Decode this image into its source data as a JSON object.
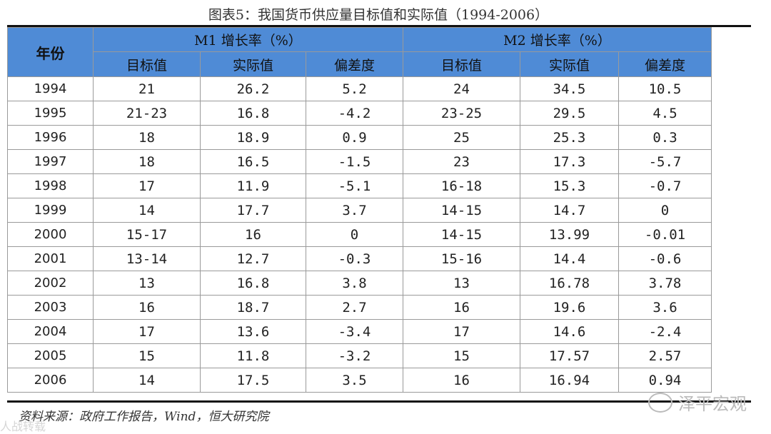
{
  "caption": "图表5：我国货币供应量目标值和实际值（1994-2006）",
  "headers": {
    "year": "年份",
    "m1_group": "M1 增长率（%）",
    "m2_group": "M2 增长率（%）",
    "target": "目标值",
    "actual": "实际值",
    "deviation": "偏差度"
  },
  "rows": [
    {
      "year": "1994",
      "m1_target": "21",
      "m1_actual": "26.2",
      "m1_dev": "5.2",
      "m2_target": "24",
      "m2_actual": "34.5",
      "m2_dev": "10.5"
    },
    {
      "year": "1995",
      "m1_target": "21-23",
      "m1_actual": "16.8",
      "m1_dev": "-4.2",
      "m2_target": "23-25",
      "m2_actual": "29.5",
      "m2_dev": "4.5"
    },
    {
      "year": "1996",
      "m1_target": "18",
      "m1_actual": "18.9",
      "m1_dev": "0.9",
      "m2_target": "25",
      "m2_actual": "25.3",
      "m2_dev": "0.3"
    },
    {
      "year": "1997",
      "m1_target": "18",
      "m1_actual": "16.5",
      "m1_dev": "-1.5",
      "m2_target": "23",
      "m2_actual": "17.3",
      "m2_dev": "-5.7"
    },
    {
      "year": "1998",
      "m1_target": "17",
      "m1_actual": "11.9",
      "m1_dev": "-5.1",
      "m2_target": "16-18",
      "m2_actual": "15.3",
      "m2_dev": "-0.7"
    },
    {
      "year": "1999",
      "m1_target": "14",
      "m1_actual": "17.7",
      "m1_dev": "3.7",
      "m2_target": "14-15",
      "m2_actual": "14.7",
      "m2_dev": "0"
    },
    {
      "year": "2000",
      "m1_target": "15-17",
      "m1_actual": "16",
      "m1_dev": "0",
      "m2_target": "14-15",
      "m2_actual": "13.99",
      "m2_dev": "-0.01"
    },
    {
      "year": "2001",
      "m1_target": "13-14",
      "m1_actual": "12.7",
      "m1_dev": "-0.3",
      "m2_target": "15-16",
      "m2_actual": "14.4",
      "m2_dev": "-0.6"
    },
    {
      "year": "2002",
      "m1_target": "13",
      "m1_actual": "16.8",
      "m1_dev": "3.8",
      "m2_target": "13",
      "m2_actual": "16.78",
      "m2_dev": "3.78"
    },
    {
      "year": "2003",
      "m1_target": "16",
      "m1_actual": "18.7",
      "m1_dev": "2.7",
      "m2_target": "16",
      "m2_actual": "19.6",
      "m2_dev": "3.6"
    },
    {
      "year": "2004",
      "m1_target": "17",
      "m1_actual": "13.6",
      "m1_dev": "-3.4",
      "m2_target": "17",
      "m2_actual": "14.6",
      "m2_dev": "-2.4"
    },
    {
      "year": "2005",
      "m1_target": "15",
      "m1_actual": "11.8",
      "m1_dev": "-3.2",
      "m2_target": "15",
      "m2_actual": "17.57",
      "m2_dev": "2.57"
    },
    {
      "year": "2006",
      "m1_target": "14",
      "m1_actual": "17.5",
      "m1_dev": "3.5",
      "m2_target": "16",
      "m2_actual": "16.94",
      "m2_dev": "0.94"
    }
  ],
  "source": "资料来源：政府工作报告，Wind，恒大研究院",
  "watermark": "泽平宏观",
  "watermark2": "人战转载",
  "colors": {
    "header_bg": "#4f8bd6"
  }
}
